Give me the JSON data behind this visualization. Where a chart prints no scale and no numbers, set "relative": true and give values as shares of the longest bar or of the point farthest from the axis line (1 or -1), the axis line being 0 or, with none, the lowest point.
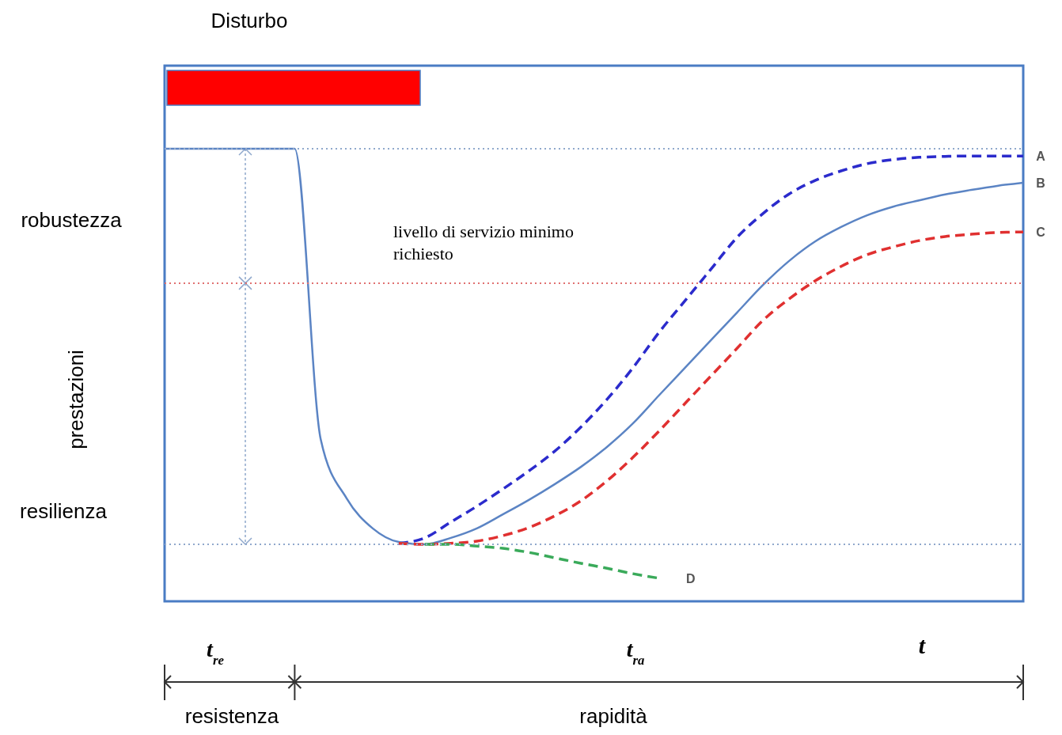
{
  "chart_data": {
    "type": "line",
    "relative": true,
    "ylabel": "prestazioni",
    "legend": false,
    "categories": [
      null,
      null,
      null,
      null,
      null,
      null,
      null,
      null,
      null,
      null,
      null,
      null,
      null,
      null,
      null,
      null,
      null,
      null,
      null,
      null,
      null,
      null,
      null,
      null,
      null,
      null,
      null,
      null,
      null,
      null,
      null,
      null,
      null,
      null
    ],
    "series": [
      {
        "name": "A",
        "color": "#2b2bcc",
        "line_style": "dashed",
        "values": [
          null,
          null,
          null,
          null,
          null,
          null,
          null,
          null,
          null,
          0.128,
          0.14,
          0.175,
          0.21,
          0.248,
          0.288,
          0.332,
          0.385,
          0.446,
          0.516,
          0.594,
          0.664,
          0.734,
          0.804,
          0.857,
          0.9,
          0.93,
          0.951,
          0.967,
          0.976,
          0.981,
          0.983,
          0.984,
          0.984,
          0.984
        ]
      },
      {
        "name": "B",
        "color": "#5b84c4",
        "line_style": "solid",
        "values": [
          1,
          1,
          1,
          1,
          1,
          1,
          0.358,
          0.227,
          0.161,
          0.131,
          0.126,
          0.14,
          0.161,
          0.192,
          0.224,
          0.259,
          0.297,
          0.341,
          0.393,
          0.455,
          0.516,
          0.577,
          0.638,
          0.699,
          0.752,
          0.795,
          0.827,
          0.853,
          0.872,
          0.886,
          0.899,
          0.909,
          0.918,
          0.925
        ]
      },
      {
        "name": "C",
        "color": "#e03030",
        "line_style": "dashed",
        "values": [
          null,
          null,
          null,
          null,
          null,
          null,
          null,
          null,
          null,
          0.128,
          0.126,
          0.128,
          0.133,
          0.145,
          0.163,
          0.189,
          0.222,
          0.266,
          0.318,
          0.376,
          0.437,
          0.498,
          0.559,
          0.621,
          0.668,
          0.708,
          0.74,
          0.766,
          0.783,
          0.797,
          0.806,
          0.811,
          0.815,
          0.816
        ]
      },
      {
        "name": "D",
        "color": "#3aaa5a",
        "line_style": "dashed",
        "values": [
          null,
          null,
          null,
          null,
          null,
          null,
          null,
          null,
          null,
          null,
          0.126,
          0.126,
          0.122,
          0.117,
          0.108,
          0.096,
          0.084,
          0.073,
          0.061,
          0.051,
          null,
          null,
          null,
          null,
          null,
          null,
          null,
          null,
          null,
          null,
          null,
          null,
          null,
          null
        ]
      }
    ],
    "ref_lines": [
      {
        "axis": "y",
        "value": 1,
        "color": "#8fa8cc",
        "line_style": "dotted"
      },
      {
        "axis": "y",
        "value": 0.703,
        "color": "#e07070",
        "line_style": "dotted",
        "label": "livello di servizio minimo richiesto"
      },
      {
        "axis": "y",
        "value": 0.126,
        "color": "#8fa8cc",
        "line_style": "dotted"
      }
    ],
    "annotations": [
      "Disturbo",
      "robustezza",
      "resilienza",
      "t$_{re}$",
      "t$_{ra}$",
      "t",
      "resistenza",
      "rapidità"
    ]
  }
}
